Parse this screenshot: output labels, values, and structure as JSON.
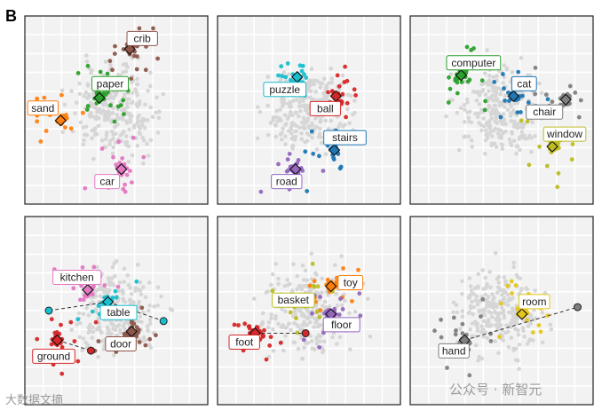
{
  "figure": {
    "panel_letter": "B"
  },
  "watermarks": {
    "left": "大数据文摘",
    "right": "公众号 · 新智元"
  },
  "chart_data": [
    {
      "type": "scatter",
      "words": [
        {
          "text": "crib",
          "color": "#8c564b",
          "x": 0.58,
          "y": 0.85
        },
        {
          "text": "paper",
          "color": "#2ca02c",
          "x": 0.4,
          "y": 0.57
        },
        {
          "text": "sand",
          "color": "#ff7f0e",
          "x": 0.17,
          "y": 0.44
        },
        {
          "text": "car",
          "color": "#e377c2",
          "x": 0.53,
          "y": 0.16
        }
      ]
    },
    {
      "type": "scatter",
      "words": [
        {
          "text": "puzzle",
          "color": "#17becf",
          "x": 0.43,
          "y": 0.69
        },
        {
          "text": "ball",
          "color": "#d62728",
          "x": 0.66,
          "y": 0.58
        },
        {
          "text": "stairs",
          "color": "#1f77b4",
          "x": 0.65,
          "y": 0.27
        },
        {
          "text": "road",
          "color": "#9467bd",
          "x": 0.42,
          "y": 0.16
        }
      ]
    },
    {
      "type": "scatter",
      "words": [
        {
          "text": "computer",
          "color": "#2ca02c",
          "x": 0.26,
          "y": 0.7
        },
        {
          "text": "cat",
          "color": "#1f77b4",
          "x": 0.57,
          "y": 0.58
        },
        {
          "text": "chair",
          "color": "#7f7f7f",
          "x": 0.88,
          "y": 0.56
        },
        {
          "text": "window",
          "color": "#bcbd22",
          "x": 0.8,
          "y": 0.29
        }
      ]
    },
    {
      "type": "scatter",
      "words": [
        {
          "text": "kitchen",
          "color": "#e377c2",
          "x": 0.33,
          "y": 0.62
        },
        {
          "text": "table",
          "color": "#17becf",
          "x": 0.45,
          "y": 0.55
        },
        {
          "text": "door",
          "color": "#8c564b",
          "x": 0.59,
          "y": 0.38
        },
        {
          "text": "ground",
          "color": "#d62728",
          "x": 0.15,
          "y": 0.33
        }
      ]
    },
    {
      "type": "scatter",
      "words": [
        {
          "text": "toy",
          "color": "#ff7f0e",
          "x": 0.63,
          "y": 0.64
        },
        {
          "text": "basket",
          "color": "#bcbd22",
          "x": 0.47,
          "y": 0.56
        },
        {
          "text": "floor",
          "color": "#9467bd",
          "x": 0.63,
          "y": 0.48
        },
        {
          "text": "foot",
          "color": "#d62728",
          "x": 0.18,
          "y": 0.37
        }
      ]
    },
    {
      "type": "scatter",
      "words": [
        {
          "text": "room",
          "color": "#e6c619",
          "x": 0.62,
          "y": 0.48
        },
        {
          "text": "hand",
          "color": "#7f7f7f",
          "x": 0.28,
          "y": 0.33
        }
      ]
    }
  ]
}
